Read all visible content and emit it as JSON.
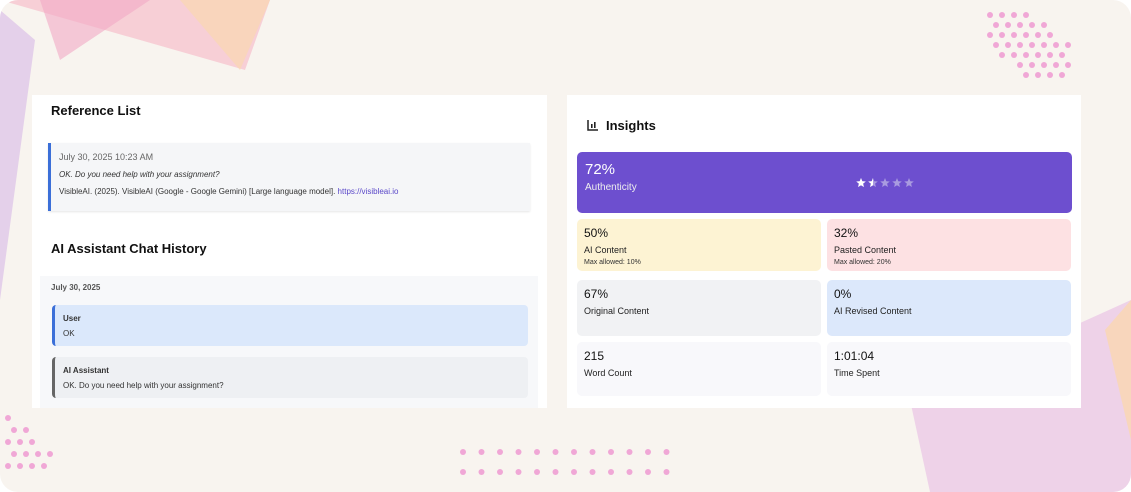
{
  "reference_list": {
    "title": "Reference List",
    "entries": [
      {
        "date": "July 30, 2025 10:23 AM",
        "quote": "OK. Do you need help with your assignment?",
        "citation": "VisibleAI. (2025). VisibleAI (Google - Google Gemini) [Large language model].",
        "link": "https://visibleai.io"
      }
    ]
  },
  "chat_history": {
    "title": "AI Assistant Chat History",
    "date": "July 30, 2025",
    "messages": [
      {
        "role": "User",
        "text": "OK"
      },
      {
        "role": "AI Assistant",
        "text": "OK. Do you need help with your assignment?"
      }
    ]
  },
  "insights": {
    "title": "Insights",
    "authenticity": {
      "value": "72%",
      "label": "Authenticity"
    },
    "rating": 1.5,
    "rating_max": 5,
    "cards": [
      {
        "value": "50%",
        "label": "AI Content",
        "note": "Max allowed: 10%"
      },
      {
        "value": "32%",
        "label": "Pasted Content",
        "note": "Max allowed: 20%"
      },
      {
        "value": "67%",
        "label": "Original Content"
      },
      {
        "value": "0%",
        "label": "AI Revised Content"
      },
      {
        "value": "215",
        "label": "Word Count"
      },
      {
        "value": "1:01:04",
        "label": "Time Spent"
      }
    ]
  }
}
